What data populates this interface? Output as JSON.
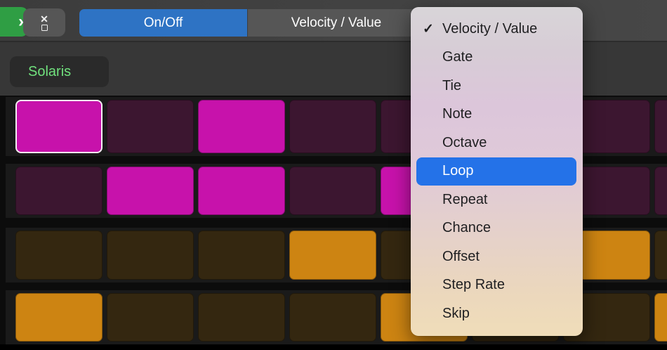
{
  "toolbar": {
    "green_button_glyph": "›",
    "on_off_label": "On/Off",
    "velocity_value_label": "Velocity / Value",
    "colors": {
      "segment_active_blue": "#2e73c4",
      "segment_inactive_gray": "#565656",
      "green_button": "#2f9e44"
    }
  },
  "track": {
    "name": "Solaris",
    "name_color": "#70e07d"
  },
  "menu": {
    "highlight_color": "#2472e8",
    "checkmark_glyph": "✓",
    "items": [
      {
        "label": "Velocity / Value",
        "checked": true,
        "highlighted": false
      },
      {
        "label": "Gate",
        "checked": false,
        "highlighted": false
      },
      {
        "label": "Tie",
        "checked": false,
        "highlighted": false
      },
      {
        "label": "Note",
        "checked": false,
        "highlighted": false
      },
      {
        "label": "Octave",
        "checked": false,
        "highlighted": false
      },
      {
        "label": "Loop",
        "checked": false,
        "highlighted": true
      },
      {
        "label": "Repeat",
        "checked": false,
        "highlighted": false
      },
      {
        "label": "Chance",
        "checked": false,
        "highlighted": false
      },
      {
        "label": "Offset",
        "checked": false,
        "highlighted": false
      },
      {
        "label": "Step Rate",
        "checked": false,
        "highlighted": false
      },
      {
        "label": "Skip",
        "checked": false,
        "highlighted": false
      }
    ]
  },
  "grid": {
    "selected_step_border": "#f4edf2",
    "rows": [
      {
        "on_color": "#c712ab",
        "off_color": "#3c1630",
        "steps": [
          {
            "on": true,
            "selected": true
          },
          {
            "on": false
          },
          {
            "on": true
          },
          {
            "on": false
          },
          {
            "on": false
          },
          {
            "on": false
          },
          {
            "on": false
          },
          {
            "on": false
          }
        ]
      },
      {
        "on_color": "#c712ab",
        "off_color": "#3c1630",
        "steps": [
          {
            "on": false
          },
          {
            "on": true
          },
          {
            "on": true
          },
          {
            "on": false
          },
          {
            "on": true
          },
          {
            "on": false
          },
          {
            "on": false
          },
          {
            "on": false
          }
        ]
      },
      {
        "on_color": "#cd8412",
        "off_color": "#342710",
        "steps": [
          {
            "on": false
          },
          {
            "on": false
          },
          {
            "on": false
          },
          {
            "on": true
          },
          {
            "on": false
          },
          {
            "on": false
          },
          {
            "on": true
          },
          {
            "on": false
          }
        ]
      },
      {
        "on_color": "#cd8412",
        "off_color": "#342710",
        "steps": [
          {
            "on": true
          },
          {
            "on": false
          },
          {
            "on": false
          },
          {
            "on": false
          },
          {
            "on": true
          },
          {
            "on": false
          },
          {
            "on": false
          },
          {
            "on": true
          }
        ]
      }
    ]
  }
}
